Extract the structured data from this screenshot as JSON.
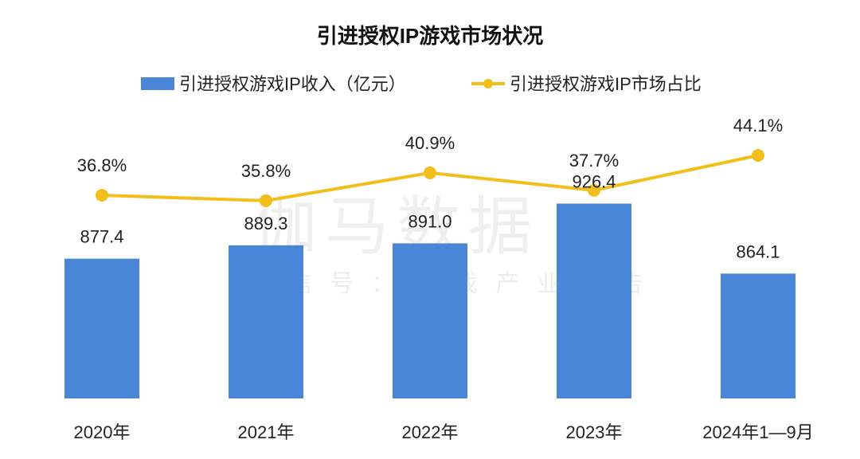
{
  "chart_data": {
    "type": "bar+line",
    "title": "引进授权IP游戏市场状况",
    "categories": [
      "2020年",
      "2021年",
      "2022年",
      "2023年",
      "2024年1—9月"
    ],
    "series": [
      {
        "name": "引进授权游戏IP收入（亿元）",
        "type": "bar",
        "axis": "left",
        "color": "#4a86d8",
        "values": [
          877.4,
          889.3,
          891.0,
          926.4,
          864.1
        ],
        "labels": [
          "877.4",
          "889.3",
          "891.0",
          "926.4",
          "864.1"
        ]
      },
      {
        "name": "引进授权游戏IP市场占比",
        "type": "line",
        "axis": "right",
        "color": "#f2be1a",
        "values": [
          36.8,
          35.8,
          40.9,
          37.7,
          44.1
        ],
        "labels": [
          "36.8%",
          "35.8%",
          "40.9%",
          "37.7%",
          "44.1%"
        ]
      }
    ],
    "ylim_left": [
      753,
      1000
    ],
    "ylim_right": [
      0,
      100
    ],
    "legend_position": "top",
    "grid": false
  },
  "watermark": {
    "main": "伽马数据",
    "sub": "微信号：游戏产业报告"
  }
}
